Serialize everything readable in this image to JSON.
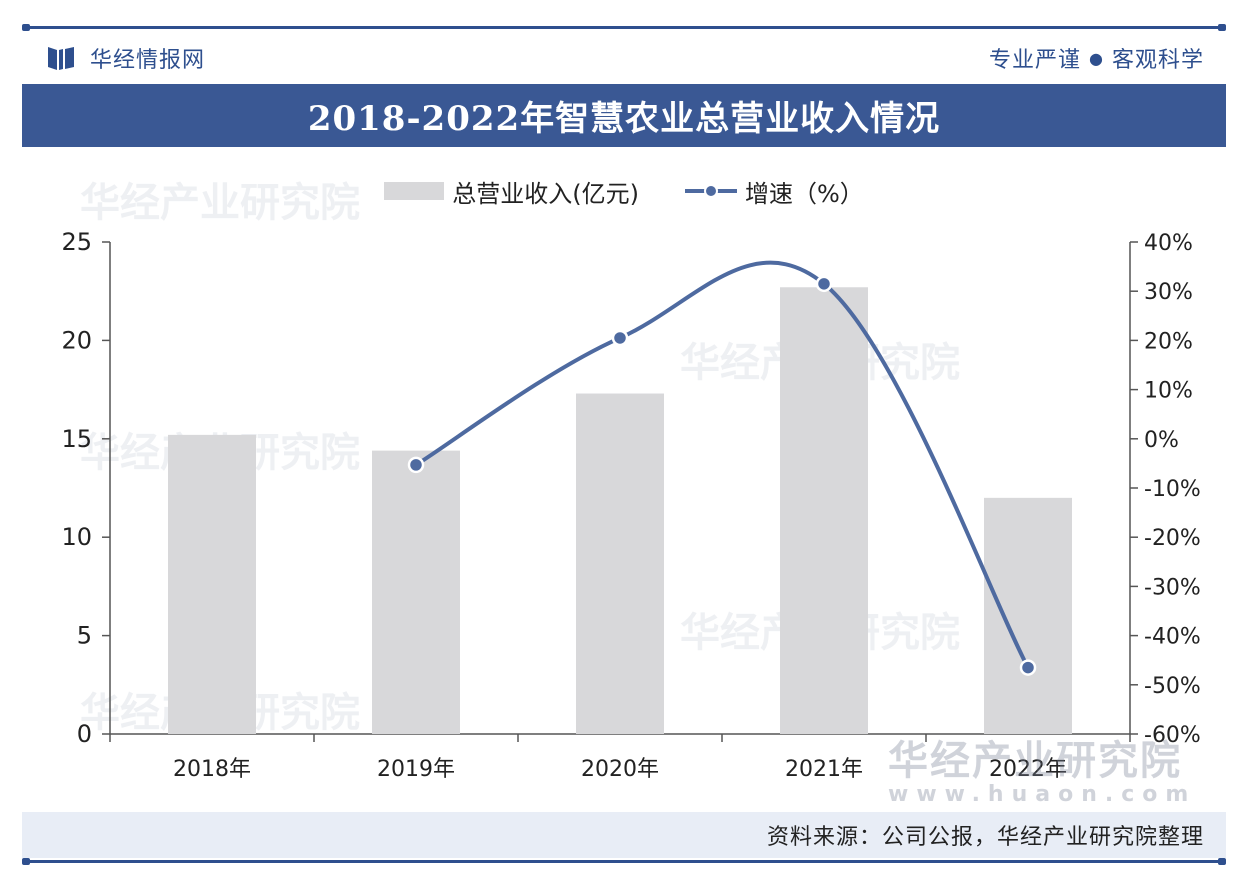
{
  "header": {
    "brand_name": "华经情报网",
    "slogan_left": "专业严谨",
    "slogan_right": "客观科学",
    "logo_icon": "book-icon",
    "accent_color": "#2e4f8e"
  },
  "chart_data": {
    "type": "bar",
    "title": "2018-2022年智慧农业总营业收入情况",
    "categories": [
      "2018年",
      "2019年",
      "2020年",
      "2021年",
      "2022年"
    ],
    "series": [
      {
        "name": "总营业收入(亿元)",
        "type": "bar",
        "axis": "left",
        "color": "#d8d8da",
        "values": [
          15.2,
          14.4,
          17.3,
          22.7,
          12.0
        ]
      },
      {
        "name": "增速（%）",
        "type": "line",
        "axis": "right",
        "color": "#4e6aa0",
        "values": [
          null,
          -5.3,
          20.5,
          31.5,
          -46.5
        ]
      }
    ],
    "y_left": {
      "min": 0,
      "max": 25,
      "ticks": [
        "0",
        "5",
        "10",
        "15",
        "20",
        "25"
      ]
    },
    "y_right": {
      "min": -60,
      "max": 40,
      "ticks": [
        "-60%",
        "-50%",
        "-40%",
        "-30%",
        "-20%",
        "-10%",
        "0%",
        "10%",
        "20%",
        "30%",
        "40%"
      ]
    },
    "grid": false,
    "legend_position": "top-center"
  },
  "source": "资料来源：公司公报，华经产业研究院整理",
  "watermark": {
    "name": "华经产业研究院",
    "url": "www.huaon.com"
  }
}
